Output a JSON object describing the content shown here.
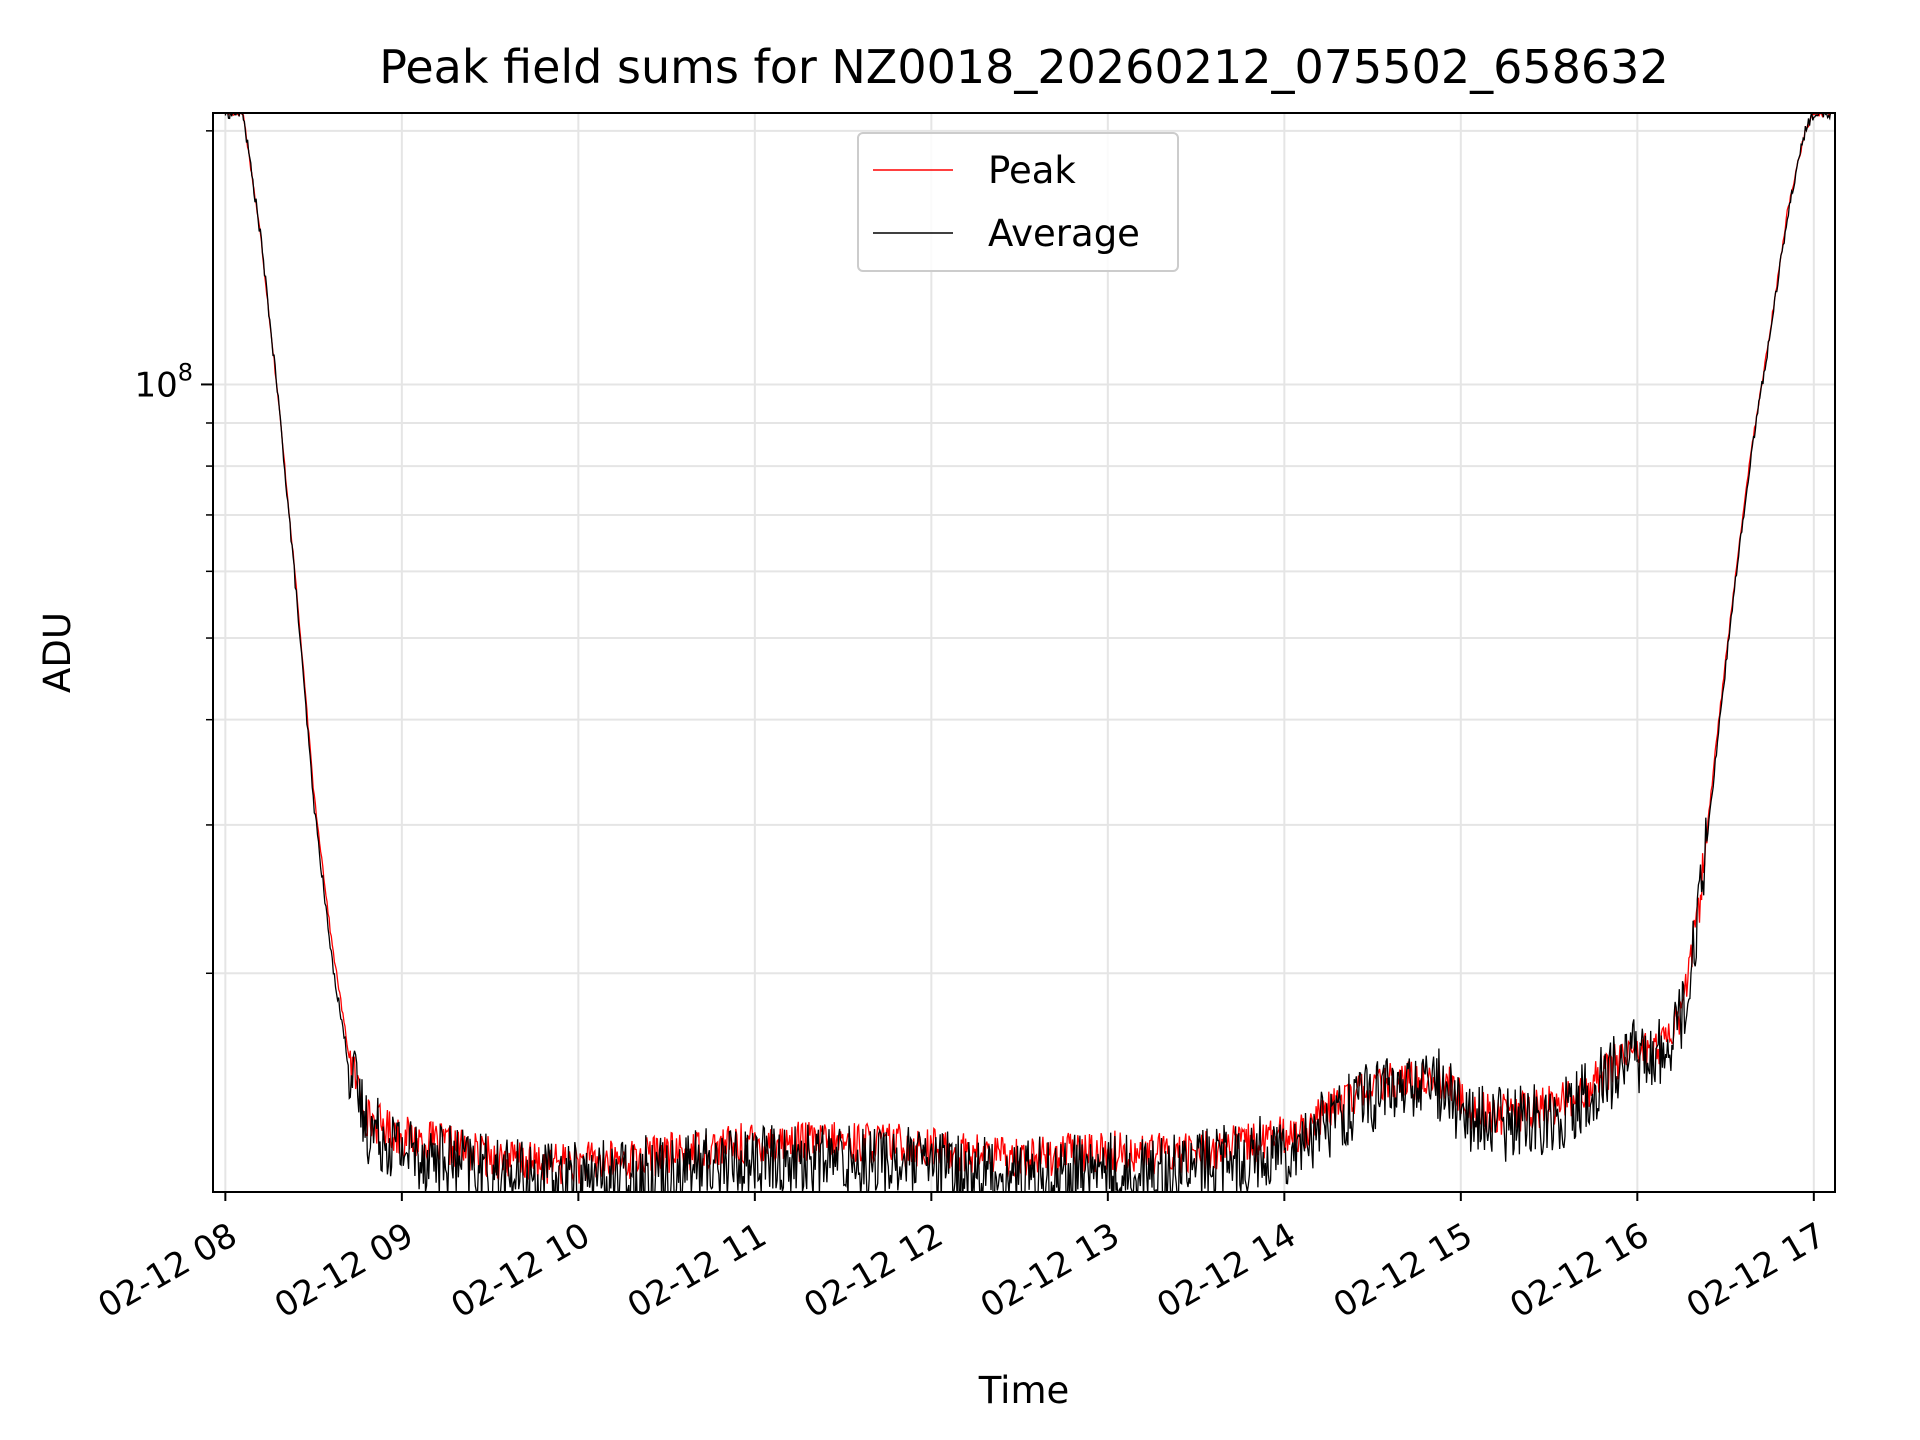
{
  "chart_data": {
    "type": "line",
    "title": "Peak field sums for NZ0018_20260212_075502_658632",
    "xlabel": "Time",
    "ylabel": "ADU",
    "yscale": "log",
    "grid": true,
    "legend_position": "top-center",
    "x_unit": "hours since 02-12 00:00",
    "xlim": [
      7.93,
      17.12
    ],
    "ylim": [
      11000000,
      210000000
    ],
    "x_ticks": [
      {
        "value": 8,
        "label": "02-12 08"
      },
      {
        "value": 9,
        "label": "02-12 09"
      },
      {
        "value": 10,
        "label": "02-12 10"
      },
      {
        "value": 11,
        "label": "02-12 11"
      },
      {
        "value": 12,
        "label": "02-12 12"
      },
      {
        "value": 13,
        "label": "02-12 13"
      },
      {
        "value": 14,
        "label": "02-12 14"
      },
      {
        "value": 15,
        "label": "02-12 15"
      },
      {
        "value": 16,
        "label": "02-12 16"
      },
      {
        "value": 17,
        "label": "02-12 17"
      }
    ],
    "y_major_ticks": [
      {
        "value": 100000000,
        "base": "10",
        "exp": "8"
      }
    ],
    "y_minor_ticks": [
      20000000,
      30000000,
      40000000,
      50000000,
      60000000,
      70000000,
      80000000,
      90000000,
      200000000
    ],
    "series": [
      {
        "name": "Peak",
        "color": "#ff0000",
        "noise": 0.025,
        "x": [
          8.0,
          8.1,
          8.2,
          8.3,
          8.4,
          8.5,
          8.6,
          8.7,
          8.8,
          9.0,
          9.25,
          9.5,
          9.75,
          10.0,
          10.25,
          10.5,
          10.75,
          11.0,
          11.25,
          11.5,
          11.75,
          12.0,
          12.25,
          12.5,
          12.75,
          13.0,
          13.25,
          13.5,
          13.75,
          14.0,
          14.15,
          14.3,
          14.45,
          14.6,
          14.75,
          14.85,
          14.95,
          15.05,
          15.2,
          15.35,
          15.5,
          15.6,
          15.7,
          15.8,
          15.9,
          15.95,
          16.05,
          16.15,
          16.25,
          16.35,
          16.45,
          16.55,
          16.65,
          16.75,
          16.85,
          16.95,
          17.0,
          17.1
        ],
        "y": [
          210000000,
          210000000,
          150000000,
          96000000,
          58000000,
          33000000,
          22000000,
          16000000,
          13500000,
          12800000,
          12500000,
          12100000,
          11900000,
          11900000,
          12000000,
          12200000,
          12400000,
          12600000,
          12600000,
          12600000,
          12600000,
          12400000,
          12200000,
          12100000,
          12200000,
          12300000,
          12200000,
          12300000,
          12500000,
          12800000,
          13200000,
          13900000,
          14500000,
          14800000,
          14900000,
          15100000,
          14600000,
          13800000,
          13600000,
          13700000,
          13900000,
          14100000,
          14500000,
          15100000,
          15900000,
          16300000,
          16200000,
          16400000,
          18000000,
          24000000,
          38000000,
          58000000,
          85000000,
          115000000,
          160000000,
          200000000,
          210000000,
          210000000
        ]
      },
      {
        "name": "Average",
        "color": "#000000",
        "noise": 0.045,
        "x": [
          8.0,
          8.1,
          8.2,
          8.3,
          8.4,
          8.5,
          8.6,
          8.7,
          8.8,
          9.0,
          9.25,
          9.5,
          9.75,
          10.0,
          10.25,
          10.5,
          10.75,
          11.0,
          11.25,
          11.5,
          11.75,
          12.0,
          12.25,
          12.5,
          12.75,
          13.0,
          13.25,
          13.5,
          13.75,
          14.0,
          14.15,
          14.3,
          14.45,
          14.6,
          14.75,
          14.85,
          14.95,
          15.05,
          15.2,
          15.35,
          15.5,
          15.6,
          15.7,
          15.8,
          15.9,
          15.95,
          16.05,
          16.15,
          16.25,
          16.35,
          16.45,
          16.55,
          16.65,
          16.75,
          16.85,
          16.95,
          17.0,
          17.1
        ],
        "y": [
          210000000,
          210000000,
          150000000,
          96000000,
          57000000,
          32000000,
          21000000,
          15500000,
          13200000,
          12400000,
          12000000,
          11600000,
          11400000,
          11400000,
          11500000,
          11700000,
          11900000,
          12000000,
          12000000,
          12000000,
          12000000,
          11800000,
          11600000,
          11500000,
          11600000,
          11700000,
          11600000,
          11800000,
          12100000,
          12400000,
          12900000,
          13600000,
          14200000,
          14500000,
          14700000,
          14900000,
          14300000,
          13400000,
          13200000,
          13300000,
          13500000,
          13800000,
          14200000,
          14800000,
          15700000,
          16100000,
          15900000,
          16100000,
          17600000,
          23500000,
          37000000,
          57000000,
          84000000,
          114000000,
          158000000,
          200000000,
          210000000,
          210000000
        ]
      }
    ]
  }
}
